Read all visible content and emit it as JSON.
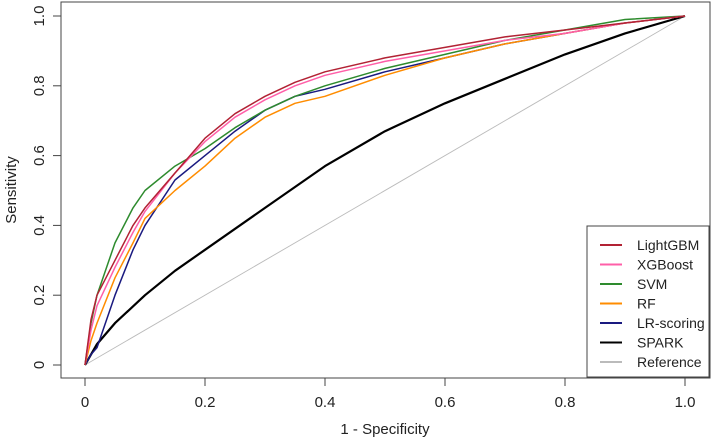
{
  "chart_data": {
    "type": "line",
    "title": "",
    "xlabel": "1 - Specificity",
    "ylabel": "Sensitivity",
    "xlim": [
      0,
      1
    ],
    "ylim": [
      0,
      1
    ],
    "grid": false,
    "legend_position": "bottom-right",
    "xticks": [
      "0",
      "0.2",
      "0.4",
      "0.6",
      "0.8",
      "1.0"
    ],
    "yticks": [
      "0",
      "0.2",
      "0.4",
      "0.6",
      "0.8",
      "1.0"
    ],
    "series": [
      {
        "name": "LightGBM",
        "color": "#b22234",
        "x": [
          0,
          0.01,
          0.02,
          0.05,
          0.08,
          0.1,
          0.15,
          0.2,
          0.25,
          0.3,
          0.35,
          0.4,
          0.5,
          0.6,
          0.7,
          0.8,
          0.9,
          1
        ],
        "y": [
          0,
          0.13,
          0.2,
          0.3,
          0.4,
          0.45,
          0.55,
          0.65,
          0.72,
          0.77,
          0.81,
          0.84,
          0.88,
          0.91,
          0.94,
          0.96,
          0.98,
          1
        ]
      },
      {
        "name": "XGBoost",
        "color": "#ff5fa8",
        "x": [
          0,
          0.01,
          0.02,
          0.05,
          0.08,
          0.1,
          0.15,
          0.2,
          0.25,
          0.3,
          0.35,
          0.4,
          0.5,
          0.6,
          0.7,
          0.8,
          0.9,
          1
        ],
        "y": [
          0,
          0.1,
          0.17,
          0.28,
          0.38,
          0.44,
          0.55,
          0.64,
          0.71,
          0.76,
          0.8,
          0.83,
          0.87,
          0.9,
          0.93,
          0.95,
          0.98,
          1
        ]
      },
      {
        "name": "SVM",
        "color": "#2e8b2e",
        "x": [
          0,
          0.01,
          0.02,
          0.05,
          0.08,
          0.1,
          0.15,
          0.2,
          0.25,
          0.3,
          0.35,
          0.4,
          0.5,
          0.6,
          0.7,
          0.8,
          0.9,
          1
        ],
        "y": [
          0,
          0.12,
          0.2,
          0.35,
          0.45,
          0.5,
          0.57,
          0.62,
          0.68,
          0.73,
          0.77,
          0.8,
          0.85,
          0.89,
          0.93,
          0.96,
          0.99,
          1
        ]
      },
      {
        "name": "RF",
        "color": "#ff8c00",
        "x": [
          0,
          0.01,
          0.02,
          0.05,
          0.08,
          0.1,
          0.15,
          0.2,
          0.25,
          0.3,
          0.35,
          0.4,
          0.5,
          0.6,
          0.7,
          0.8,
          0.9,
          1
        ],
        "y": [
          0,
          0.07,
          0.12,
          0.25,
          0.35,
          0.42,
          0.5,
          0.57,
          0.65,
          0.71,
          0.75,
          0.77,
          0.83,
          0.88,
          0.92,
          0.95,
          0.98,
          1
        ]
      },
      {
        "name": "LR-scoring",
        "color": "#1a1a80",
        "x": [
          0,
          0.01,
          0.02,
          0.05,
          0.08,
          0.1,
          0.15,
          0.2,
          0.25,
          0.3,
          0.35,
          0.4,
          0.5,
          0.6,
          0.7,
          0.8,
          0.9,
          1
        ],
        "y": [
          0,
          0.03,
          0.05,
          0.2,
          0.33,
          0.4,
          0.53,
          0.6,
          0.67,
          0.73,
          0.77,
          0.79,
          0.84,
          0.88,
          0.92,
          0.95,
          0.98,
          1
        ]
      },
      {
        "name": "SPARK",
        "color": "#000000",
        "x": [
          0,
          0.02,
          0.05,
          0.1,
          0.15,
          0.2,
          0.3,
          0.4,
          0.5,
          0.6,
          0.7,
          0.8,
          0.9,
          1
        ],
        "y": [
          0,
          0.06,
          0.12,
          0.2,
          0.27,
          0.33,
          0.45,
          0.57,
          0.67,
          0.75,
          0.82,
          0.89,
          0.95,
          1
        ]
      },
      {
        "name": "Reference",
        "color": "#bbbbbb",
        "x": [
          0,
          1
        ],
        "y": [
          0,
          1
        ]
      }
    ]
  }
}
